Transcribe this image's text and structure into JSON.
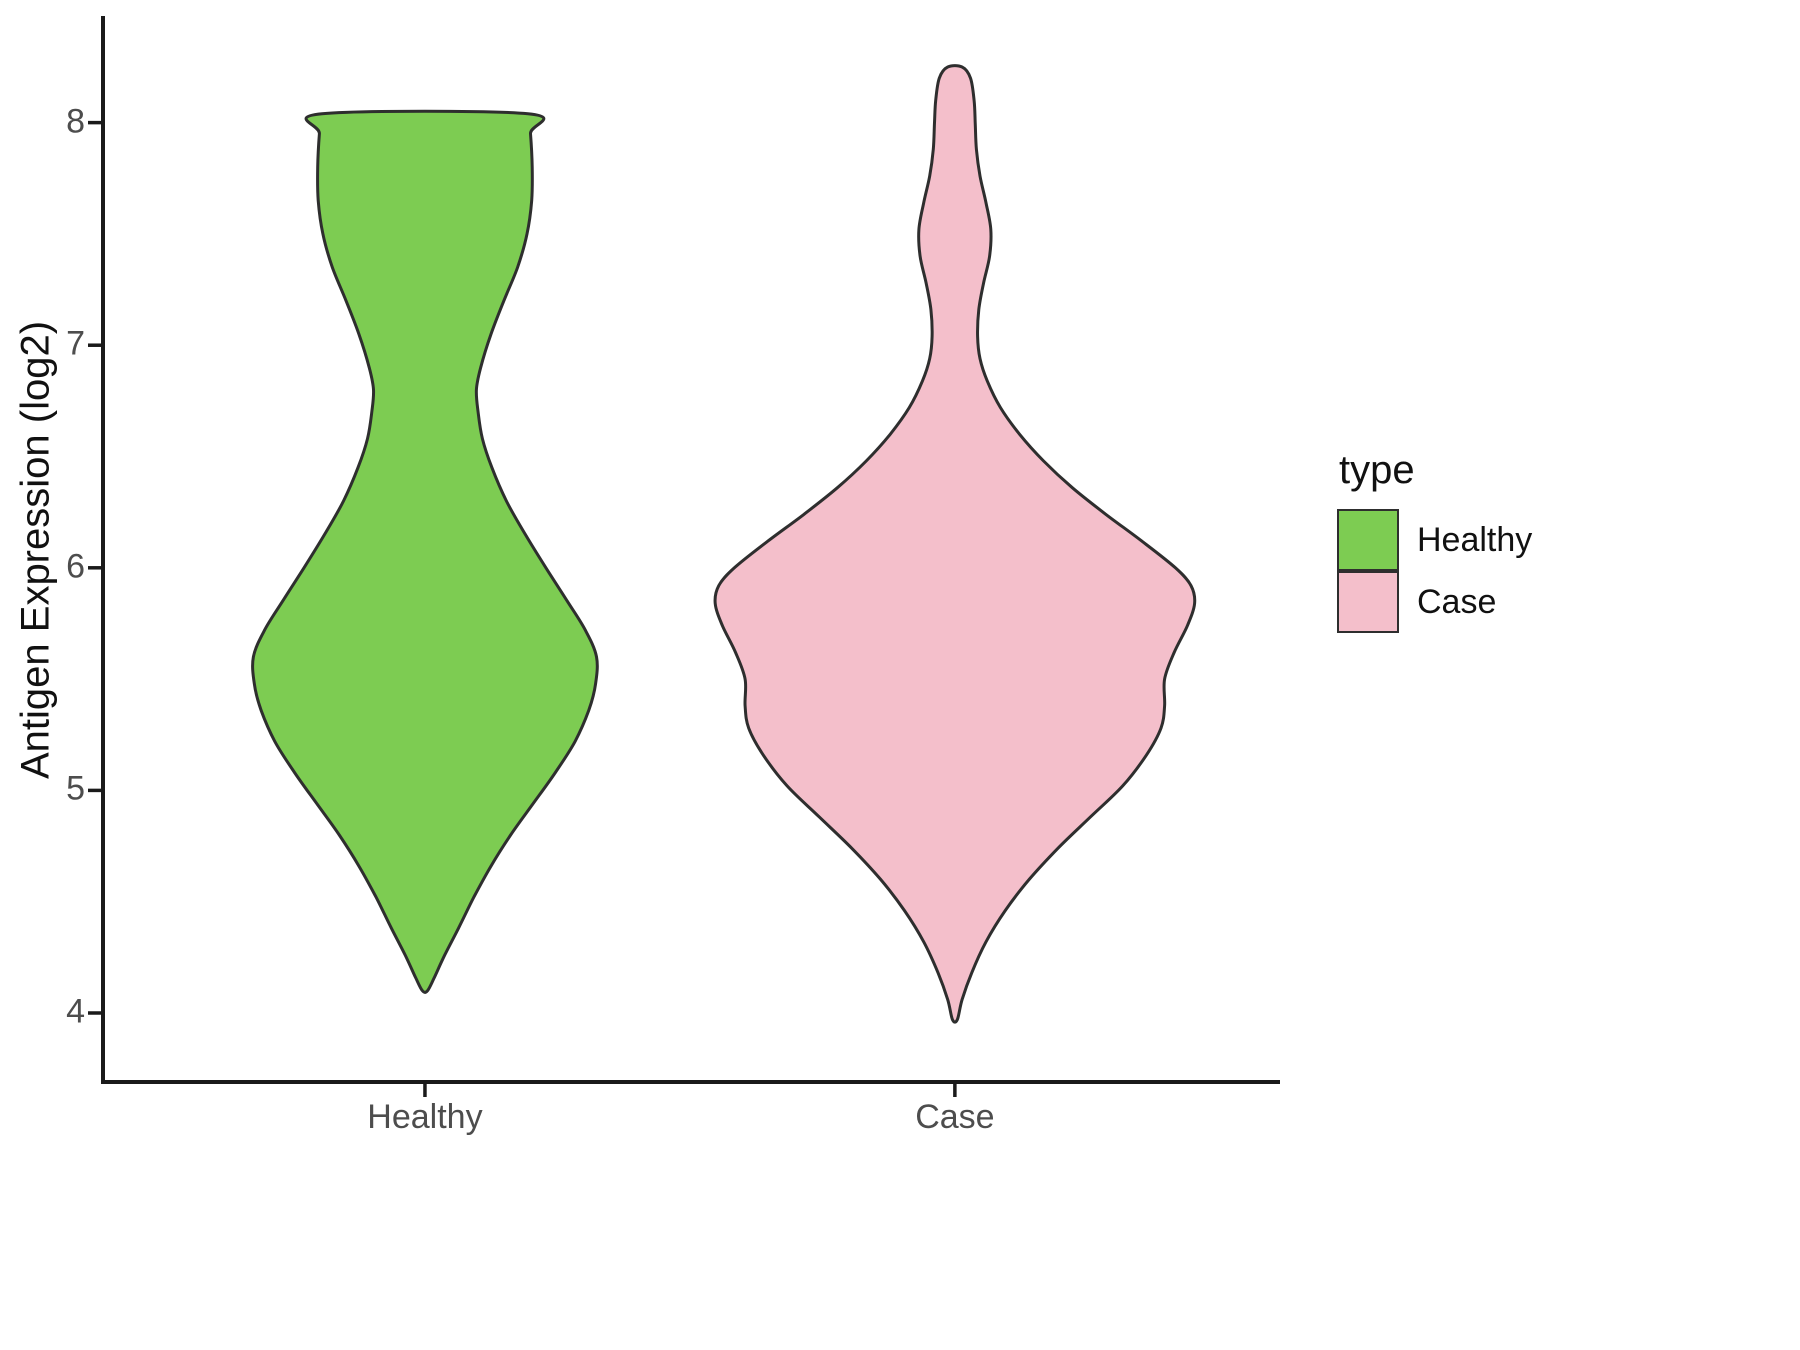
{
  "chart_data": {
    "type": "violin",
    "title": "",
    "xlabel": "",
    "ylabel": "Antigen Expression (log2)",
    "ylim": [
      3.69,
      8.47
    ],
    "yticks": [
      4,
      5,
      6,
      7,
      8
    ],
    "categories": [
      "Healthy",
      "Case"
    ],
    "grid": "off",
    "legend": {
      "title": "type",
      "position": "right",
      "entries": [
        {
          "label": "Healthy",
          "color": "#7dcc52"
        },
        {
          "label": "Case",
          "color": "#f4bfcb"
        }
      ]
    },
    "style": {
      "outline_color": "#2e2e2e",
      "axis_color": "#1a1a1a",
      "tick_label_color": "#4d4d4d",
      "background": "#ffffff"
    },
    "series": [
      {
        "name": "Healthy",
        "color": "#7dcc52",
        "center_frac": 0.274,
        "halfwidth_frac": 0.146,
        "profile": [
          [
            8.04,
            0.6
          ],
          [
            7.95,
            0.615
          ],
          [
            7.8,
            0.625
          ],
          [
            7.65,
            0.622
          ],
          [
            7.5,
            0.595
          ],
          [
            7.35,
            0.54
          ],
          [
            7.2,
            0.46
          ],
          [
            7.05,
            0.385
          ],
          [
            6.9,
            0.325
          ],
          [
            6.8,
            0.3
          ],
          [
            6.7,
            0.31
          ],
          [
            6.58,
            0.335
          ],
          [
            6.45,
            0.39
          ],
          [
            6.3,
            0.475
          ],
          [
            6.15,
            0.585
          ],
          [
            6.0,
            0.705
          ],
          [
            5.85,
            0.83
          ],
          [
            5.72,
            0.935
          ],
          [
            5.6,
            1.0
          ],
          [
            5.48,
            0.995
          ],
          [
            5.36,
            0.955
          ],
          [
            5.22,
            0.875
          ],
          [
            5.08,
            0.76
          ],
          [
            4.94,
            0.63
          ],
          [
            4.8,
            0.5
          ],
          [
            4.66,
            0.385
          ],
          [
            4.52,
            0.285
          ],
          [
            4.38,
            0.195
          ],
          [
            4.26,
            0.115
          ],
          [
            4.16,
            0.055
          ],
          [
            4.1,
            0.015
          ]
        ]
      },
      {
        "name": "Case",
        "color": "#f4bfcb",
        "center_frac": 0.725,
        "halfwidth_frac": 0.204,
        "profile": [
          [
            8.25,
            0.03
          ],
          [
            8.2,
            0.065
          ],
          [
            8.1,
            0.08
          ],
          [
            8.0,
            0.085
          ],
          [
            7.88,
            0.09
          ],
          [
            7.76,
            0.105
          ],
          [
            7.64,
            0.13
          ],
          [
            7.52,
            0.15
          ],
          [
            7.4,
            0.145
          ],
          [
            7.28,
            0.12
          ],
          [
            7.16,
            0.1
          ],
          [
            7.04,
            0.095
          ],
          [
            6.94,
            0.105
          ],
          [
            6.84,
            0.135
          ],
          [
            6.72,
            0.19
          ],
          [
            6.6,
            0.27
          ],
          [
            6.48,
            0.37
          ],
          [
            6.36,
            0.49
          ],
          [
            6.24,
            0.63
          ],
          [
            6.12,
            0.78
          ],
          [
            6.0,
            0.92
          ],
          [
            5.92,
            0.985
          ],
          [
            5.84,
            1.0
          ],
          [
            5.74,
            0.97
          ],
          [
            5.62,
            0.915
          ],
          [
            5.5,
            0.875
          ],
          [
            5.38,
            0.875
          ],
          [
            5.28,
            0.86
          ],
          [
            5.16,
            0.8
          ],
          [
            5.02,
            0.7
          ],
          [
            4.88,
            0.565
          ],
          [
            4.74,
            0.43
          ],
          [
            4.6,
            0.31
          ],
          [
            4.46,
            0.21
          ],
          [
            4.32,
            0.13
          ],
          [
            4.18,
            0.07
          ],
          [
            4.06,
            0.03
          ],
          [
            3.97,
            0.01
          ]
        ]
      }
    ]
  }
}
